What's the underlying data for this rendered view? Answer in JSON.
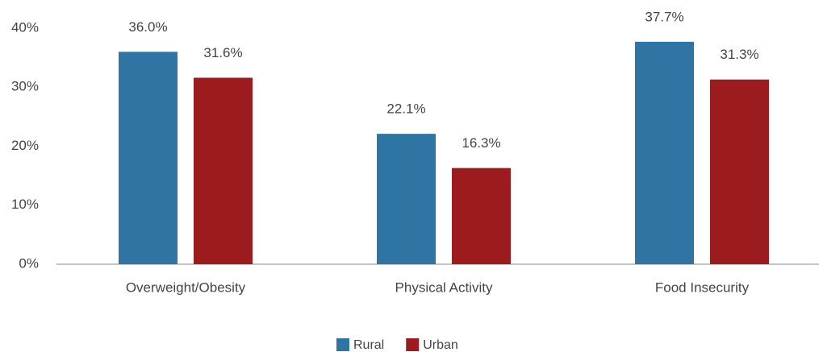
{
  "chart_data": {
    "type": "bar",
    "categories": [
      "Overweight/Obesity",
      "Physical Activity",
      "Food Insecurity"
    ],
    "series": [
      {
        "name": "Rural",
        "color": "#2e75a3",
        "values": [
          36.0,
          22.1,
          37.7
        ],
        "value_labels": [
          "36.0%",
          "22.1%",
          "37.7%"
        ]
      },
      {
        "name": "Urban",
        "color": "#9b1b1f",
        "values": [
          31.6,
          16.3,
          31.3
        ],
        "value_labels": [
          "31.6%",
          "16.3%",
          "31.3%"
        ]
      }
    ],
    "ylim": [
      0,
      40
    ],
    "yticks": [
      {
        "value": 0,
        "label": "0%"
      },
      {
        "value": 10,
        "label": "10%"
      },
      {
        "value": 20,
        "label": "20%"
      },
      {
        "value": 30,
        "label": "30%"
      },
      {
        "value": 40,
        "label": "40%"
      }
    ],
    "grid": false,
    "legend": "bottom"
  }
}
